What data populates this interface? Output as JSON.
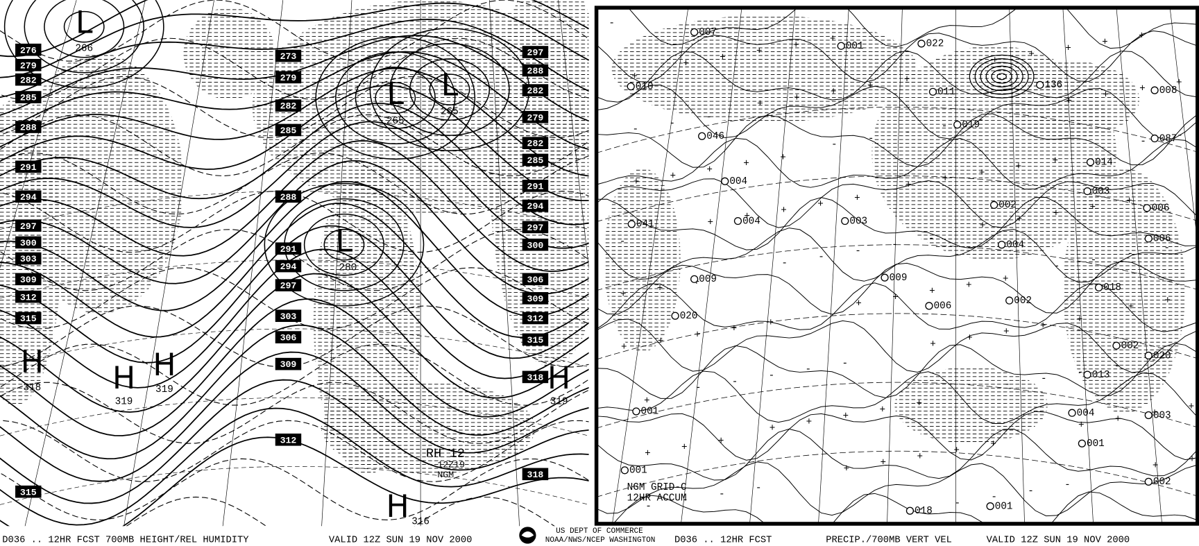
{
  "left_panel": {
    "height_labels_west": [
      "276",
      "279",
      "282",
      "285",
      "288",
      "291",
      "294",
      "297",
      "300",
      "303",
      "309",
      "312",
      "315",
      "315"
    ],
    "height_labels_center": [
      "273",
      "279",
      "282",
      "285",
      "288",
      "291",
      "294",
      "297",
      "303",
      "306",
      "309",
      "312"
    ],
    "height_labels_east": [
      "297",
      "288",
      "282",
      "279",
      "282",
      "285",
      "291",
      "294",
      "297",
      "300",
      "306",
      "309",
      "312",
      "315",
      "318",
      "318"
    ],
    "centers": [
      {
        "symbol": "L",
        "value": "266"
      },
      {
        "symbol": "L",
        "value": "265"
      },
      {
        "symbol": "L",
        "value": "265"
      },
      {
        "symbol": "L",
        "value": "280"
      },
      {
        "symbol": "H",
        "value": "318"
      },
      {
        "symbol": "H",
        "value": "319"
      },
      {
        "symbol": "H",
        "value": "319"
      },
      {
        "symbol": "H",
        "value": "319"
      },
      {
        "symbol": "H",
        "value": "316"
      }
    ],
    "rh_label": "RH 12",
    "run_label": "12Z19",
    "model_label": "NGM"
  },
  "right_panel": {
    "precip_labels": [
      "007",
      "001",
      "022",
      "136",
      "008",
      "010",
      "011",
      "019",
      "046",
      "087",
      "014",
      "003",
      "004",
      "002",
      "006",
      "004",
      "003",
      "041",
      "006",
      "004",
      "009",
      "009",
      "018",
      "020",
      "006",
      "002",
      "002",
      "020",
      "013",
      "001",
      "003",
      "004",
      "001",
      "002",
      "001",
      "018",
      "001"
    ],
    "notes": [
      "NGM GRID-C",
      "12HR ACCUM"
    ]
  },
  "footer": {
    "left_title": "D036 .. 12HR FCST 700MB HEIGHT/REL HUMIDITY",
    "left_valid": "VALID 12Z SUN 19 NOV 2000",
    "agency_line1": "US DEPT OF COMMERCE",
    "agency_line2": "NOAA/NWS/NCEP WASHINGTON",
    "right_title": "D036 .. 12HR FCST",
    "right_subject": "PRECIP./700MB VERT VEL",
    "right_valid": "VALID 12Z SUN 19 NOV 2000"
  }
}
